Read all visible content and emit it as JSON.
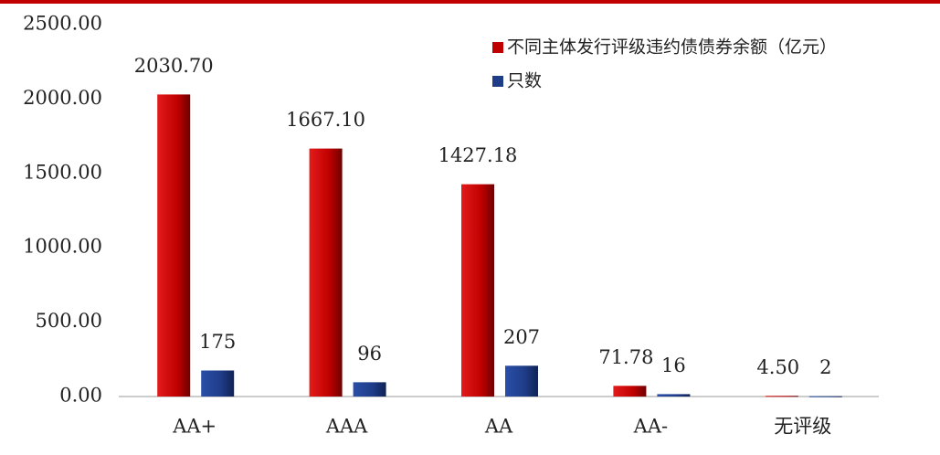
{
  "chart_data": {
    "type": "bar",
    "categories": [
      "AA+",
      "AAA",
      "AA",
      "AA-",
      "无评级"
    ],
    "series": [
      {
        "name": "不同主体发行评级违约债债券余额（亿元）",
        "color": "#c00000",
        "values": [
          2030.7,
          1667.1,
          1427.18,
          71.78,
          4.5
        ],
        "value_labels": [
          "2030.70",
          "1667.10",
          "1427.18",
          "71.78",
          "4.50"
        ]
      },
      {
        "name": "只数",
        "color": "#1f3c88",
        "values": [
          175,
          96,
          207,
          16,
          2
        ]
      }
    ],
    "ylim": [
      0,
      2500
    ],
    "yticks": [
      {
        "value": 0,
        "label": "0.00"
      },
      {
        "value": 500,
        "label": "500.00"
      },
      {
        "value": 1000,
        "label": "1000.00"
      },
      {
        "value": 1500,
        "label": "1500.00"
      },
      {
        "value": 2000,
        "label": "2000.00"
      },
      {
        "value": 2500,
        "label": "2500.00"
      }
    ],
    "legend": "top-right"
  }
}
